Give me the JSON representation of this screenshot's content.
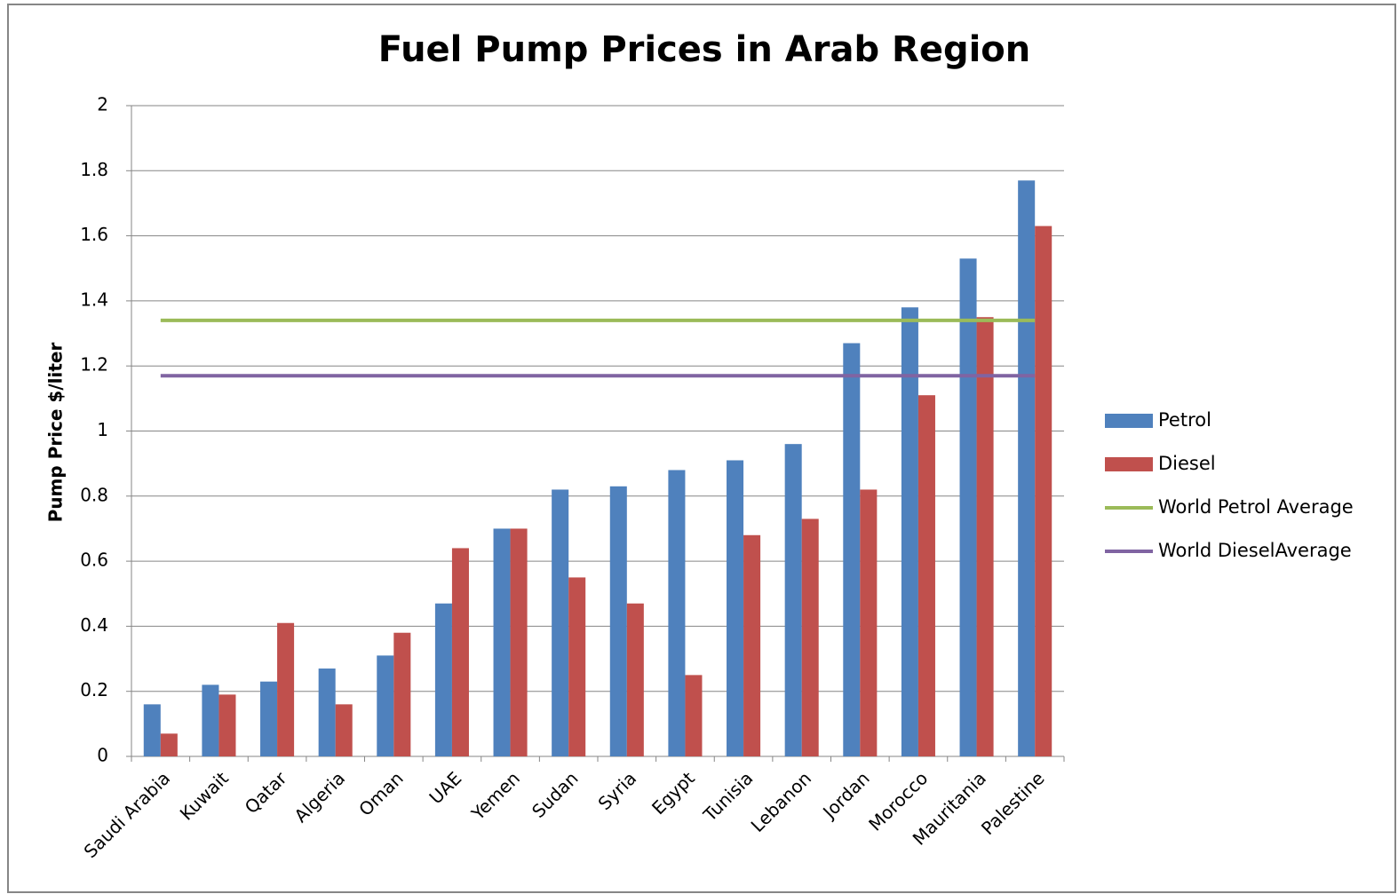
{
  "chart_data": {
    "type": "bar",
    "title": "Fuel Pump Prices in Arab Region",
    "y_label": "Pump Price $/liter",
    "categories": [
      "Saudi Arabia",
      "Kuwait",
      "Qatar",
      "Algeria",
      "Oman",
      "UAE",
      "Yemen",
      "Sudan",
      "Syria",
      "Egypt",
      "Tunisia",
      "Lebanon",
      "Jordan",
      "Morocco",
      "Mauritania",
      "Palestine"
    ],
    "series": [
      {
        "name": "Petrol",
        "type": "bar",
        "color": "#4f81bd",
        "values": [
          0.16,
          0.22,
          0.23,
          0.27,
          0.31,
          0.47,
          0.7,
          0.82,
          0.83,
          0.88,
          0.91,
          0.96,
          1.27,
          1.38,
          1.53,
          1.77
        ]
      },
      {
        "name": "Diesel",
        "type": "bar",
        "color": "#c0504d",
        "values": [
          0.07,
          0.19,
          0.41,
          0.16,
          0.38,
          0.64,
          0.7,
          0.55,
          0.47,
          0.25,
          0.68,
          0.73,
          0.82,
          1.11,
          1.35,
          1.63
        ]
      },
      {
        "name": "World Petrol Average",
        "type": "line",
        "color": "#9bbb59",
        "values": [
          1.34,
          1.34,
          1.34,
          1.34,
          1.34,
          1.34,
          1.34,
          1.34,
          1.34,
          1.34,
          1.34,
          1.34,
          1.34,
          1.34,
          1.34,
          1.34
        ]
      },
      {
        "name": "World DieselAverage",
        "type": "line",
        "color": "#8064a2",
        "values": [
          1.17,
          1.17,
          1.17,
          1.17,
          1.17,
          1.17,
          1.17,
          1.17,
          1.17,
          1.17,
          1.17,
          1.17,
          1.17,
          1.17,
          1.17,
          1.17
        ]
      }
    ],
    "ylim": [
      0,
      2
    ],
    "yticks": [
      0,
      0.2,
      0.4,
      0.6,
      0.8,
      1,
      1.2,
      1.4,
      1.6,
      1.8,
      2
    ],
    "grid": true,
    "legend": "right"
  }
}
